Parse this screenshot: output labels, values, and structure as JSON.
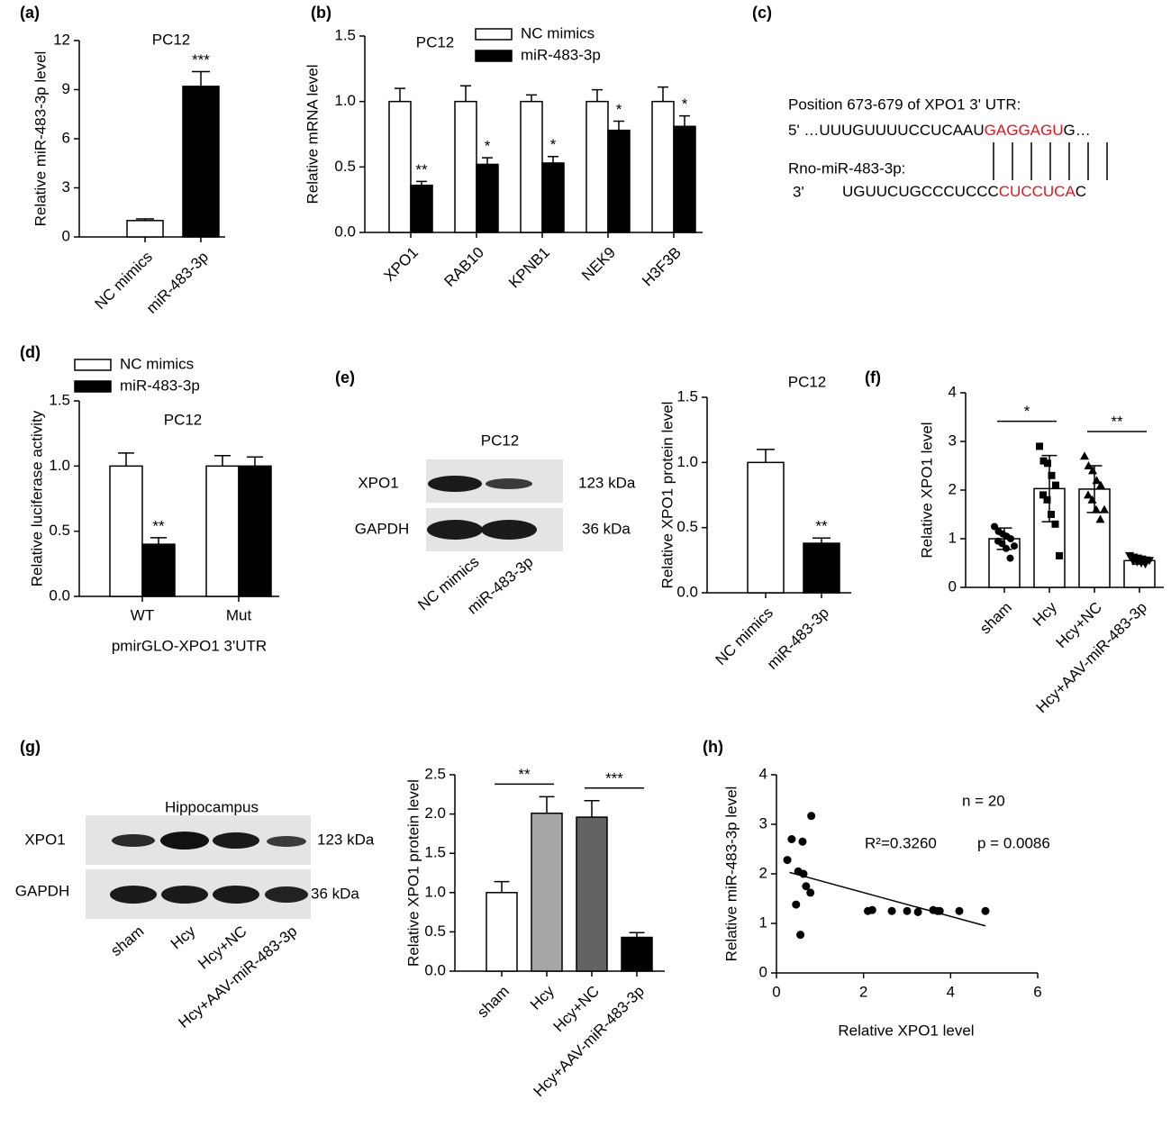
{
  "chart_data": [
    {
      "type": "bar",
      "label": "(a)",
      "title": "PC12",
      "ylabel": "Relative miR-483-3p level",
      "categories": [
        "NC mimics",
        "miR-483-3p"
      ],
      "values": [
        1,
        9.2
      ],
      "errors": [
        0.1,
        0.9
      ],
      "colors": [
        "#ffffff",
        "#000000"
      ],
      "ylim": [
        0,
        12
      ],
      "yticks": [
        0,
        3,
        6,
        9,
        12
      ],
      "significance": [
        {
          "index": 1,
          "label": "***"
        }
      ]
    },
    {
      "type": "bar",
      "label": "(b)",
      "title": "PC12",
      "ylabel": "Relative mRNA level",
      "categories": [
        "XPO1",
        "RAB10",
        "KPNB1",
        "NEK9",
        "H3F3B"
      ],
      "series": [
        {
          "name": "NC mimics",
          "color": "#ffffff",
          "values": [
            1,
            1,
            1,
            1,
            1
          ],
          "errors": [
            0.1,
            0.12,
            0.05,
            0.09,
            0.11
          ]
        },
        {
          "name": "miR-483-3p",
          "color": "#000000",
          "values": [
            0.36,
            0.52,
            0.53,
            0.78,
            0.81
          ],
          "errors": [
            0.03,
            0.05,
            0.05,
            0.07,
            0.08
          ]
        }
      ],
      "ylim": [
        0,
        1.5
      ],
      "yticks": [
        {
          "value": 0,
          "label": "0.0"
        },
        {
          "value": 0.5,
          "label": "0.5"
        },
        {
          "value": 1,
          "label": "1.0"
        },
        {
          "value": 1.5,
          "label": "1.5"
        }
      ],
      "significance": [
        {
          "series": 1,
          "index": 0,
          "label": "**"
        },
        {
          "series": 1,
          "index": 1,
          "label": "*"
        },
        {
          "series": 1,
          "index": 2,
          "label": "*"
        },
        {
          "series": 1,
          "index": 3,
          "label": "*"
        },
        {
          "series": 1,
          "index": 4,
          "label": "*"
        }
      ]
    },
    {
      "type": "bar",
      "label": "(d)",
      "title": "PC12",
      "ylabel": "Relative luciferase activity",
      "xlabel": "pmirGLO-XPO1 3'UTR",
      "categories": [
        "WT",
        "Mut"
      ],
      "series": [
        {
          "name": "NC mimics",
          "color": "#ffffff",
          "values": [
            1,
            1
          ],
          "errors": [
            0.1,
            0.08
          ]
        },
        {
          "name": "miR-483-3p",
          "color": "#000000",
          "values": [
            0.4,
            1.0
          ],
          "errors": [
            0.05,
            0.07
          ]
        }
      ],
      "ylim": [
        0,
        1.5
      ],
      "yticks": [
        {
          "value": 0,
          "label": "0.0"
        },
        {
          "value": 0.5,
          "label": "0.5"
        },
        {
          "value": 1,
          "label": "1.0"
        },
        {
          "value": 1.5,
          "label": "1.5"
        }
      ],
      "significance": [
        {
          "series": 1,
          "index": 0,
          "label": "**"
        }
      ]
    },
    {
      "type": "bar",
      "label": "(e)",
      "title": "PC12",
      "ylabel": "Relative  XPO1 protein level",
      "categories": [
        "NC mimics",
        "miR-483-3p"
      ],
      "values": [
        1,
        0.38
      ],
      "errors": [
        0.1,
        0.04
      ],
      "colors": [
        "#ffffff",
        "#000000"
      ],
      "ylim": [
        0,
        1.5
      ],
      "yticks": [
        {
          "value": 0,
          "label": "0.0"
        },
        {
          "value": 0.5,
          "label": "0.5"
        },
        {
          "value": 1,
          "label": "1.0"
        },
        {
          "value": 1.5,
          "label": "1.5"
        }
      ],
      "significance": [
        {
          "index": 1,
          "label": "**"
        }
      ]
    },
    {
      "type": "bar",
      "label": "(f)",
      "ylabel": "Relative XPO1 level",
      "categories": [
        "sham",
        "Hcy",
        "Hcy+NC",
        "Hcy+AAV-miR-483-3p"
      ],
      "values": [
        1.0,
        2.03,
        2.02,
        0.55
      ],
      "errors": [
        0.22,
        0.68,
        0.48,
        0.07
      ],
      "colors": [
        "#ffffff",
        "#ffffff",
        "#ffffff",
        "#ffffff"
      ],
      "markers": [
        "circle",
        "square",
        "triangle",
        "triangle-down"
      ],
      "points": [
        [
          1.25,
          1.15,
          1.1,
          1.05,
          1.0,
          0.95,
          0.9,
          0.8,
          0.6,
          0.85
        ],
        [
          2.9,
          2.6,
          2.55,
          2.3,
          2.1,
          1.9,
          1.8,
          1.5,
          1.3,
          0.65
        ],
        [
          2.7,
          2.5,
          2.4,
          2.2,
          2.1,
          1.9,
          1.8,
          1.6,
          1.4,
          1.6
        ],
        [
          0.65,
          0.62,
          0.6,
          0.58,
          0.56,
          0.54,
          0.52,
          0.5,
          0.48,
          0.55
        ]
      ],
      "ylim": [
        0,
        4
      ],
      "yticks": [
        0,
        1,
        2,
        3,
        4
      ],
      "brackets": [
        {
          "from": 0,
          "to": 1,
          "label": "*"
        },
        {
          "from": 2,
          "to": 3,
          "label": "**"
        }
      ]
    },
    {
      "type": "bar",
      "label": "(g)",
      "ylabel": "Relative XPO1 protein level",
      "categories": [
        "sham",
        "Hcy",
        "Hcy+NC",
        "Hcy+AAV-miR-483-3p"
      ],
      "values": [
        1.0,
        2.01,
        1.96,
        0.43
      ],
      "errors": [
        0.14,
        0.21,
        0.21,
        0.06
      ],
      "colors": [
        "#ffffff",
        "#a6a6a6",
        "#636363",
        "#000000"
      ],
      "ylim": [
        0,
        2.5
      ],
      "yticks": [
        {
          "value": 0,
          "label": "0.0"
        },
        {
          "value": 0.5,
          "label": "0.5"
        },
        {
          "value": 1,
          "label": "1.0"
        },
        {
          "value": 1.5,
          "label": "1.5"
        },
        {
          "value": 2,
          "label": "2.0"
        },
        {
          "value": 2.5,
          "label": "2.5"
        }
      ],
      "brackets": [
        {
          "from": 0,
          "to": 1,
          "label": "**"
        },
        {
          "from": 2,
          "to": 3,
          "label": "***"
        }
      ]
    },
    {
      "type": "scatter",
      "label": "(h)",
      "xlabel": "Relative XPO1 level",
      "ylabel": "Relative miR-483-3p level",
      "x": [
        0.25,
        0.35,
        0.45,
        0.5,
        0.55,
        0.6,
        0.62,
        0.68,
        0.78,
        0.8,
        2.1,
        2.2,
        2.65,
        3.0,
        3.25,
        3.6,
        3.7,
        3.75,
        4.2,
        4.8
      ],
      "y": [
        2.28,
        2.7,
        1.38,
        2.05,
        0.77,
        2.65,
        2.0,
        1.75,
        1.62,
        3.17,
        1.25,
        1.27,
        1.25,
        1.25,
        1.23,
        1.27,
        1.25,
        1.25,
        1.25,
        1.25
      ],
      "fit": {
        "x": [
          0.3,
          4.8
        ],
        "y": [
          2.03,
          0.95
        ]
      },
      "xlim": [
        0,
        6
      ],
      "xticks": [
        0,
        2,
        4,
        6
      ],
      "ylim": [
        0,
        4
      ],
      "yticks": [
        0,
        1,
        2,
        3,
        4
      ],
      "annotations": [
        "n = 20",
        "R²=0.3260",
        "p = 0.0086"
      ]
    }
  ],
  "sequence": {
    "label": "(c)",
    "header": "Position 673-679 of XPO1 3' UTR:",
    "target": {
      "prefix": "5' …UUUGUUUUCCUCAAU",
      "seed": "GAGGAGU",
      "suffix": "G…"
    },
    "mirna_name": "Rno-miR-483-3p:",
    "mirna": {
      "prefix": "3'",
      "body": "UGUUCUGCCCUCCC",
      "seed": "CUCCUCA",
      "suffix": "C"
    }
  },
  "blots": [
    {
      "title": "PC12",
      "proteins": [
        "XPO1",
        "GAPDH"
      ],
      "sizes": [
        "123 kDa",
        "36 kDa"
      ],
      "lanes": [
        "NC mimics",
        "miR-483-3p"
      ]
    },
    {
      "title": "Hippocampus",
      "proteins": [
        "XPO1",
        "GAPDH"
      ],
      "sizes": [
        "123 kDa",
        "36 kDa"
      ],
      "lanes": [
        "sham",
        "Hcy",
        "Hcy+NC",
        "Hcy+AAV-miR-483-3p"
      ]
    }
  ]
}
